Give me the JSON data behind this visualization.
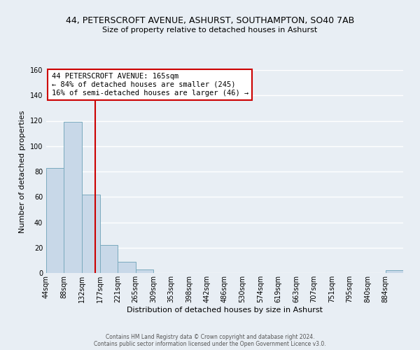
{
  "title_line1": "44, PETERSCROFT AVENUE, ASHURST, SOUTHAMPTON, SO40 7AB",
  "title_line2": "Size of property relative to detached houses in Ashurst",
  "xlabel": "Distribution of detached houses by size in Ashurst",
  "ylabel": "Number of detached properties",
  "bar_edges": [
    44,
    88,
    132,
    177,
    221,
    265,
    309,
    353,
    398,
    442,
    486,
    530,
    574,
    619,
    663,
    707,
    751,
    795,
    840,
    884,
    928
  ],
  "bar_heights": [
    83,
    119,
    62,
    22,
    9,
    3,
    0,
    0,
    0,
    0,
    0,
    0,
    0,
    0,
    0,
    0,
    0,
    0,
    0,
    2
  ],
  "bar_color": "#c8d8e8",
  "bar_edgecolor": "#7aaabe",
  "vline_x": 165,
  "vline_color": "#cc0000",
  "annotation_title": "44 PETERSCROFT AVENUE: 165sqm",
  "annotation_line1": "← 84% of detached houses are smaller (245)",
  "annotation_line2": "16% of semi-detached houses are larger (46) →",
  "annotation_box_color": "#ffffff",
  "annotation_box_edgecolor": "#cc0000",
  "ylim": [
    0,
    160
  ],
  "yticks": [
    0,
    20,
    40,
    60,
    80,
    100,
    120,
    140,
    160
  ],
  "footer_line1": "Contains HM Land Registry data © Crown copyright and database right 2024.",
  "footer_line2": "Contains public sector information licensed under the Open Government Licence v3.0.",
  "background_color": "#e8eef4",
  "grid_color": "#ffffff",
  "tick_label_fontsize": 7,
  "ylabel_fontsize": 8,
  "xlabel_fontsize": 8,
  "title1_fontsize": 9,
  "title2_fontsize": 8
}
